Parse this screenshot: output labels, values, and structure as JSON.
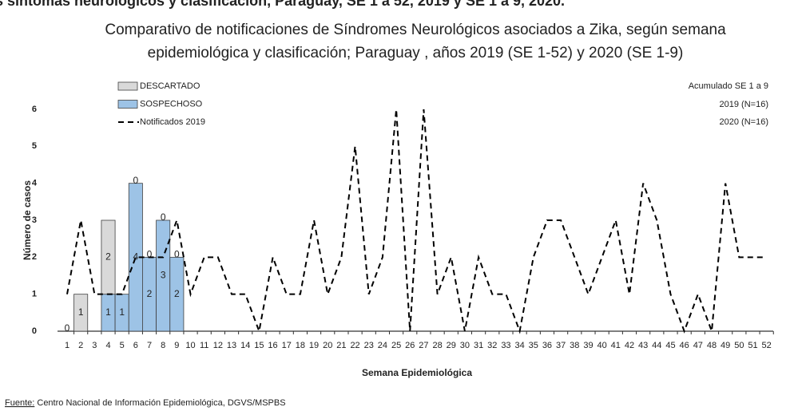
{
  "chart_data": {
    "type": "bar",
    "header": "s síntomas neurológicos y clasificación, Paraguay, SE 1 a 52, 2019 y SE 1 a 9, 2020.",
    "title": [
      "Comparativo de notificaciones de Síndromes Neurológicos asociados a  Zika,  según semana",
      "epidemiológica y clasificación;  Paraguay , años  2019  (SE 1-52) y 2020  (SE 1-9)"
    ],
    "y_label": "Número de casos",
    "x_label": "Semana Epidemiológica",
    "annotation": [
      "Acumulado SE 1 a 9",
      "2019 (N=16)",
      "2020 (N=16)"
    ],
    "source": {
      "label": "Fuente:",
      "text": " Centro Nacional de Información  Epidemiológica, DGVS/MSPBS"
    },
    "categories": [
      "1",
      "2",
      "3",
      "4",
      "5",
      "6",
      "7",
      "8",
      "9",
      "10",
      "11",
      "12",
      "13",
      "14",
      "15",
      "16",
      "17",
      "18",
      "19",
      "20",
      "21",
      "22",
      "23",
      "24",
      "25",
      "26",
      "27",
      "28",
      "29",
      "30",
      "31",
      "32",
      "33",
      "34",
      "35",
      "36",
      "37",
      "38",
      "39",
      "40",
      "41",
      "42",
      "43",
      "44",
      "45",
      "46",
      "47",
      "48",
      "49",
      "50",
      "51",
      "52"
    ],
    "ylim": [
      0,
      6
    ],
    "yticks": [
      0,
      1,
      2,
      3,
      4,
      5,
      6
    ],
    "series": [
      {
        "name": "DESCARTADO",
        "type": "bar",
        "color": "#d9d9d9",
        "values": [
          0,
          1,
          null,
          2,
          null,
          0,
          0,
          0,
          0,
          null,
          null,
          null,
          null,
          null,
          null,
          null,
          null,
          null,
          null,
          null,
          null,
          null,
          null,
          null,
          null,
          null,
          null,
          null,
          null,
          null,
          null,
          null,
          null,
          null,
          null,
          null,
          null,
          null,
          null,
          null,
          null,
          null,
          null,
          null,
          null,
          null,
          null,
          null,
          null,
          null,
          null,
          null
        ]
      },
      {
        "name": "SOSPECHOSO",
        "type": "bar",
        "color": "#9dc3e6",
        "values": [
          null,
          null,
          null,
          1,
          1,
          4,
          2,
          3,
          2,
          null,
          null,
          null,
          null,
          null,
          null,
          null,
          null,
          null,
          null,
          null,
          null,
          null,
          null,
          null,
          null,
          null,
          null,
          null,
          null,
          null,
          null,
          null,
          null,
          null,
          null,
          null,
          null,
          null,
          null,
          null,
          null,
          null,
          null,
          null,
          null,
          null,
          null,
          null,
          null,
          null,
          null,
          null
        ]
      },
      {
        "name": "Notificados  2019",
        "type": "line",
        "color": "#000000",
        "values": [
          1,
          3,
          1,
          1,
          1,
          2,
          2,
          2,
          3,
          1,
          2,
          2,
          1,
          1,
          0,
          2,
          1,
          1,
          3,
          1,
          2,
          5,
          1,
          2,
          6,
          0,
          6,
          1,
          2,
          0,
          2,
          1,
          1,
          0,
          2,
          3,
          3,
          2,
          1,
          2,
          3,
          1,
          4,
          3,
          1,
          0,
          1,
          0,
          4,
          2,
          2,
          2
        ]
      }
    ]
  }
}
